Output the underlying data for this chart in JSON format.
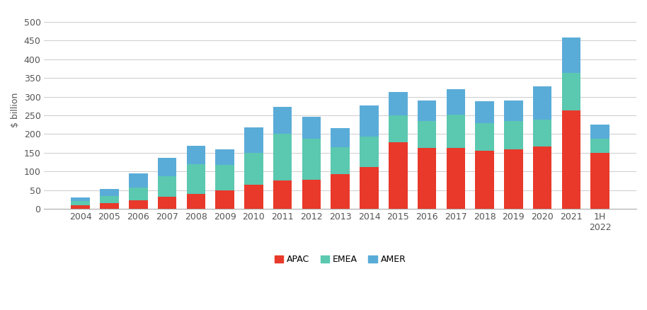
{
  "years": [
    "2004",
    "2005",
    "2006",
    "2007",
    "2008",
    "2009",
    "2010",
    "2011",
    "2012",
    "2013",
    "2014",
    "2015",
    "2016",
    "2017",
    "2018",
    "2019",
    "2020",
    "2021",
    "1H 2022"
  ],
  "APAC": [
    9,
    15,
    22,
    33,
    40,
    50,
    65,
    75,
    78,
    92,
    112,
    178,
    163,
    162,
    155,
    160,
    167,
    263,
    150
  ],
  "EMEA": [
    12,
    20,
    35,
    55,
    80,
    68,
    85,
    125,
    110,
    72,
    82,
    72,
    72,
    90,
    75,
    75,
    72,
    100,
    38
  ],
  "AMER": [
    10,
    18,
    38,
    48,
    48,
    42,
    68,
    72,
    58,
    52,
    82,
    62,
    55,
    68,
    58,
    55,
    88,
    95,
    38
  ],
  "colors": {
    "APAC": "#e8392a",
    "EMEA": "#5bc8b0",
    "AMER": "#5aacd8"
  },
  "ylabel": "$ billion",
  "ylim": [
    0,
    530
  ],
  "yticks": [
    0,
    50,
    100,
    150,
    200,
    250,
    300,
    350,
    400,
    450,
    500
  ],
  "background_color": "#ffffff",
  "grid_color": "#cccccc",
  "legend_labels": [
    "APAC",
    "EMEA",
    "AMER"
  ]
}
